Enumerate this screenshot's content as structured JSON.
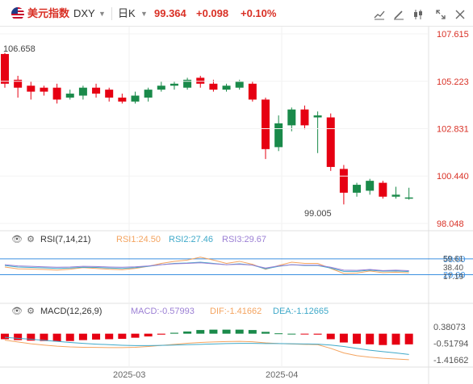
{
  "header": {
    "symbol_cn": "美元指数",
    "symbol": "DXY",
    "period": "日K",
    "price": "99.364",
    "change": "+0.098",
    "change_pct": "+0.10%"
  },
  "colors": {
    "up": "#e60012",
    "down": "#1a8a4a",
    "rsi1": "#f4a460",
    "rsi2": "#3fa9c9",
    "rsi3": "#9b7fd4",
    "dif": "#f4a460",
    "dea": "#3fa9c9",
    "ref_line": "#3b8fe0"
  },
  "chart_data": [
    {
      "type": "candlestick",
      "name": "price",
      "y_axis_labels": [
        "107.615",
        "105.223",
        "102.831",
        "100.440",
        "98.048"
      ],
      "ylim": [
        98.048,
        107.615
      ],
      "high_label": "106.658",
      "low_label": "99.005",
      "x_labels": [
        "2025-03",
        "2025-04"
      ],
      "candles": [
        {
          "o": 106.6,
          "c": 105.1,
          "h": 106.66,
          "l": 104.9
        },
        {
          "o": 105.3,
          "c": 104.9,
          "h": 105.5,
          "l": 104.4
        },
        {
          "o": 105.0,
          "c": 104.7,
          "h": 105.2,
          "l": 104.3
        },
        {
          "o": 104.9,
          "c": 104.7,
          "h": 105.0,
          "l": 104.5
        },
        {
          "o": 104.9,
          "c": 104.3,
          "h": 105.1,
          "l": 104.1
        },
        {
          "o": 104.4,
          "c": 104.6,
          "h": 104.8,
          "l": 104.3
        },
        {
          "o": 104.5,
          "c": 104.9,
          "h": 105.0,
          "l": 104.3
        },
        {
          "o": 104.9,
          "c": 104.6,
          "h": 105.1,
          "l": 104.4
        },
        {
          "o": 104.8,
          "c": 104.4,
          "h": 104.9,
          "l": 104.2
        },
        {
          "o": 104.4,
          "c": 104.2,
          "h": 104.6,
          "l": 104.1
        },
        {
          "o": 104.2,
          "c": 104.5,
          "h": 104.7,
          "l": 104.1
        },
        {
          "o": 104.4,
          "c": 104.8,
          "h": 104.9,
          "l": 104.2
        },
        {
          "o": 104.8,
          "c": 105.0,
          "h": 105.2,
          "l": 104.7
        },
        {
          "o": 105.0,
          "c": 105.1,
          "h": 105.2,
          "l": 104.8
        },
        {
          "o": 104.9,
          "c": 105.3,
          "h": 105.4,
          "l": 104.8
        },
        {
          "o": 105.4,
          "c": 105.1,
          "h": 105.5,
          "l": 104.9
        },
        {
          "o": 105.1,
          "c": 104.8,
          "h": 105.3,
          "l": 104.7
        },
        {
          "o": 104.8,
          "c": 105.0,
          "h": 105.1,
          "l": 104.7
        },
        {
          "o": 104.9,
          "c": 105.2,
          "h": 105.3,
          "l": 104.8
        },
        {
          "o": 105.1,
          "c": 104.3,
          "h": 105.2,
          "l": 104.2
        },
        {
          "o": 104.3,
          "c": 101.8,
          "h": 104.4,
          "l": 101.3
        },
        {
          "o": 101.9,
          "c": 103.1,
          "h": 103.5,
          "l": 101.7
        },
        {
          "o": 103.0,
          "c": 103.8,
          "h": 103.9,
          "l": 102.7
        },
        {
          "o": 103.8,
          "c": 103.0,
          "h": 104.0,
          "l": 102.8
        },
        {
          "o": 103.4,
          "c": 103.5,
          "h": 103.7,
          "l": 101.6
        },
        {
          "o": 103.4,
          "c": 100.9,
          "h": 103.6,
          "l": 100.7
        },
        {
          "o": 100.8,
          "c": 99.6,
          "h": 101.0,
          "l": 99.01
        },
        {
          "o": 99.6,
          "c": 100.0,
          "h": 100.1,
          "l": 99.4
        },
        {
          "o": 99.7,
          "c": 100.2,
          "h": 100.3,
          "l": 99.5
        },
        {
          "o": 100.1,
          "c": 99.4,
          "h": 100.2,
          "l": 99.3
        },
        {
          "o": 99.4,
          "c": 99.5,
          "h": 99.9,
          "l": 99.3
        },
        {
          "o": 99.3,
          "c": 99.36,
          "h": 99.85,
          "l": 99.25
        }
      ]
    },
    {
      "type": "line",
      "name": "RSI",
      "label": "RSI(7,14,21)",
      "legend": [
        "RSI1:24.50",
        "RSI2:27.46",
        "RSI3:29.67"
      ],
      "y_axis_labels": [
        "59.61",
        "38.40",
        "17.19"
      ],
      "ylim": [
        17.19,
        59.61
      ],
      "ref_lines": [
        {
          "value": 58.0,
          "label": "58.00"
        },
        {
          "value": 20.0,
          "label": "20.00"
        }
      ],
      "series": [
        {
          "name": "RSI1",
          "values": [
            38.4,
            34.0,
            33.5,
            32.5,
            31.0,
            33.0,
            37.0,
            35.0,
            33.0,
            32.0,
            35.0,
            40.0,
            47.0,
            52.0,
            55.0,
            62.0,
            55.0,
            47.0,
            52.0,
            45.0,
            33.0,
            42.0,
            50.0,
            47.0,
            47.0,
            35.0,
            23.0,
            24.0,
            29.0,
            25.0,
            26.0,
            24.5
          ]
        },
        {
          "name": "RSI2",
          "values": [
            42.0,
            38.5,
            37.5,
            36.5,
            35.0,
            36.0,
            38.0,
            37.5,
            36.0,
            35.0,
            37.0,
            40.0,
            44.0,
            47.0,
            48.0,
            50.0,
            47.0,
            44.0,
            46.0,
            43.0,
            34.0,
            40.0,
            44.0,
            42.0,
            42.0,
            36.0,
            28.0,
            28.0,
            31.0,
            28.5,
            29.0,
            27.5
          ]
        },
        {
          "name": "RSI3",
          "values": [
            44.0,
            41.0,
            40.0,
            39.0,
            38.0,
            38.5,
            40.0,
            39.5,
            38.5,
            38.0,
            39.0,
            41.0,
            44.0,
            46.0,
            47.0,
            48.5,
            46.0,
            44.0,
            45.0,
            43.0,
            36.0,
            41.0,
            44.0,
            43.0,
            43.0,
            38.0,
            31.0,
            30.5,
            32.5,
            30.0,
            31.0,
            29.67
          ]
        }
      ]
    },
    {
      "type": "bar-line",
      "name": "MACD",
      "label": "MACD(12,26,9)",
      "legend": [
        "MACD:-0.57993",
        "DIF:-1.41662",
        "DEA:-1.12665"
      ],
      "y_axis_labels": [
        "0.38073",
        "-0.51794",
        "-1.41662"
      ],
      "ylim": [
        -1.6,
        0.6
      ],
      "series": [
        {
          "name": "MACD",
          "values": [
            -0.3,
            -0.35,
            -0.38,
            -0.4,
            -0.42,
            -0.4,
            -0.35,
            -0.32,
            -0.3,
            -0.28,
            -0.22,
            -0.15,
            -0.05,
            0.05,
            0.12,
            0.2,
            0.22,
            0.22,
            0.22,
            0.2,
            0.1,
            0.02,
            0.0,
            -0.02,
            -0.05,
            -0.3,
            -0.48,
            -0.55,
            -0.58,
            -0.62,
            -0.6,
            -0.58
          ]
        },
        {
          "name": "DIF",
          "values": [
            -0.35,
            -0.45,
            -0.55,
            -0.62,
            -0.68,
            -0.72,
            -0.74,
            -0.75,
            -0.76,
            -0.76,
            -0.74,
            -0.7,
            -0.64,
            -0.58,
            -0.52,
            -0.48,
            -0.45,
            -0.43,
            -0.42,
            -0.44,
            -0.5,
            -0.54,
            -0.56,
            -0.58,
            -0.6,
            -0.8,
            -1.05,
            -1.2,
            -1.28,
            -1.34,
            -1.38,
            -1.42
          ]
        },
        {
          "name": "DEA",
          "values": [
            -0.2,
            -0.25,
            -0.3,
            -0.36,
            -0.42,
            -0.48,
            -0.53,
            -0.57,
            -0.6,
            -0.63,
            -0.65,
            -0.65,
            -0.64,
            -0.62,
            -0.6,
            -0.58,
            -0.56,
            -0.54,
            -0.53,
            -0.53,
            -0.54,
            -0.54,
            -0.55,
            -0.56,
            -0.57,
            -0.62,
            -0.7,
            -0.8,
            -0.9,
            -0.98,
            -1.05,
            -1.13
          ]
        }
      ]
    }
  ]
}
